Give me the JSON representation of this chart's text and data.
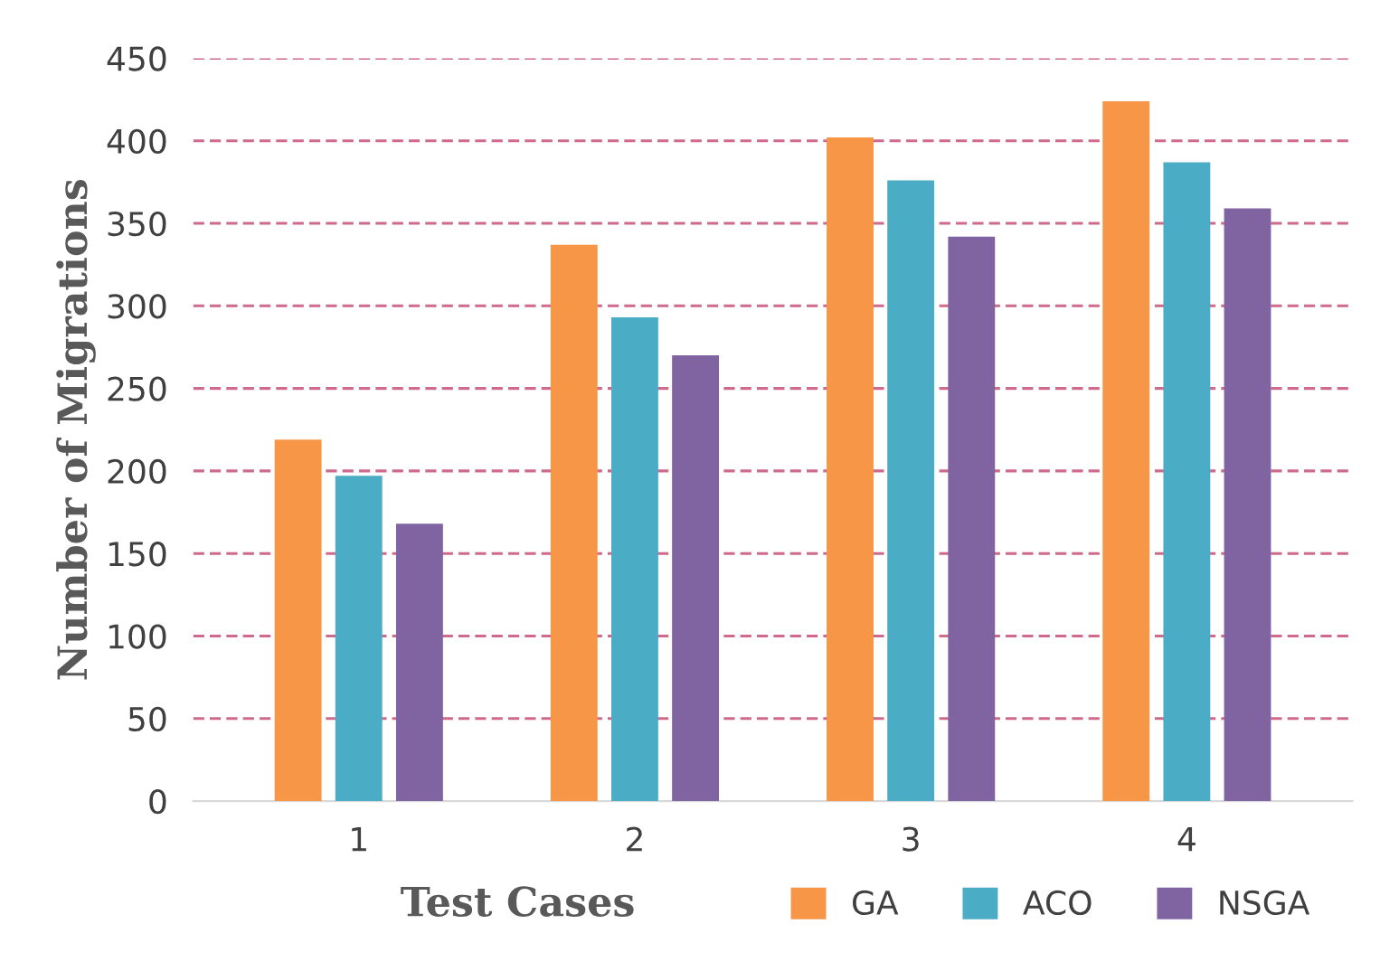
{
  "chart_data": {
    "type": "bar",
    "xlabel": "Test Cases",
    "ylabel": "Number of Migrations",
    "categories": [
      "1",
      "2",
      "3",
      "4"
    ],
    "series": [
      {
        "name": "GA",
        "color": "#f79646",
        "values": [
          219,
          337,
          402,
          424
        ]
      },
      {
        "name": "ACO",
        "color": "#4bacc6",
        "values": [
          197,
          293,
          376,
          387
        ]
      },
      {
        "name": "NSGA",
        "color": "#8064a2",
        "values": [
          168,
          270,
          342,
          359
        ]
      }
    ],
    "ylim": [
      0,
      450
    ],
    "yticks": [
      0,
      50,
      100,
      150,
      200,
      250,
      300,
      350,
      400,
      450
    ],
    "grid": "y",
    "legend": "bottom"
  }
}
